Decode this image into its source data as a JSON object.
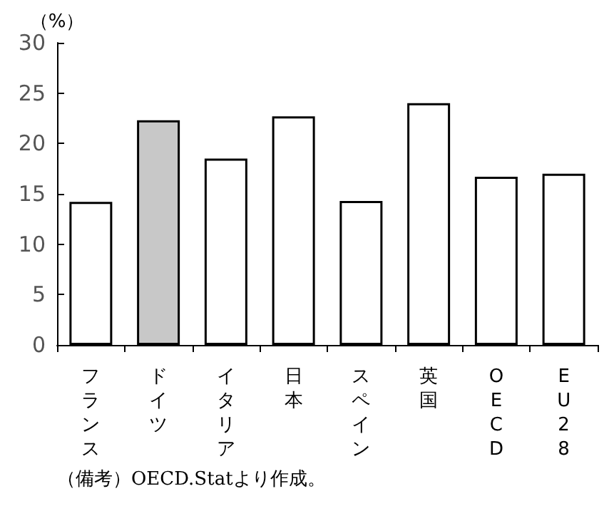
{
  "chart_data": {
    "type": "bar",
    "ylabel": "（%）",
    "categories": [
      "フランス",
      "ドイツ",
      "イタリア",
      "日本",
      "スペイン",
      "英国",
      "OECD",
      "EU28"
    ],
    "values": [
      14.2,
      22.3,
      18.5,
      22.7,
      14.3,
      24.0,
      16.7,
      17.0
    ],
    "colors": [
      "#ffffff",
      "#c8c8c8",
      "#ffffff",
      "#ffffff",
      "#ffffff",
      "#ffffff",
      "#ffffff",
      "#ffffff"
    ],
    "ylim": [
      0,
      30
    ],
    "yticks": [
      0,
      5,
      10,
      15,
      20,
      25,
      30
    ],
    "grid": false,
    "annotations": [
      "（備考）OECD.Statより作成。"
    ]
  }
}
